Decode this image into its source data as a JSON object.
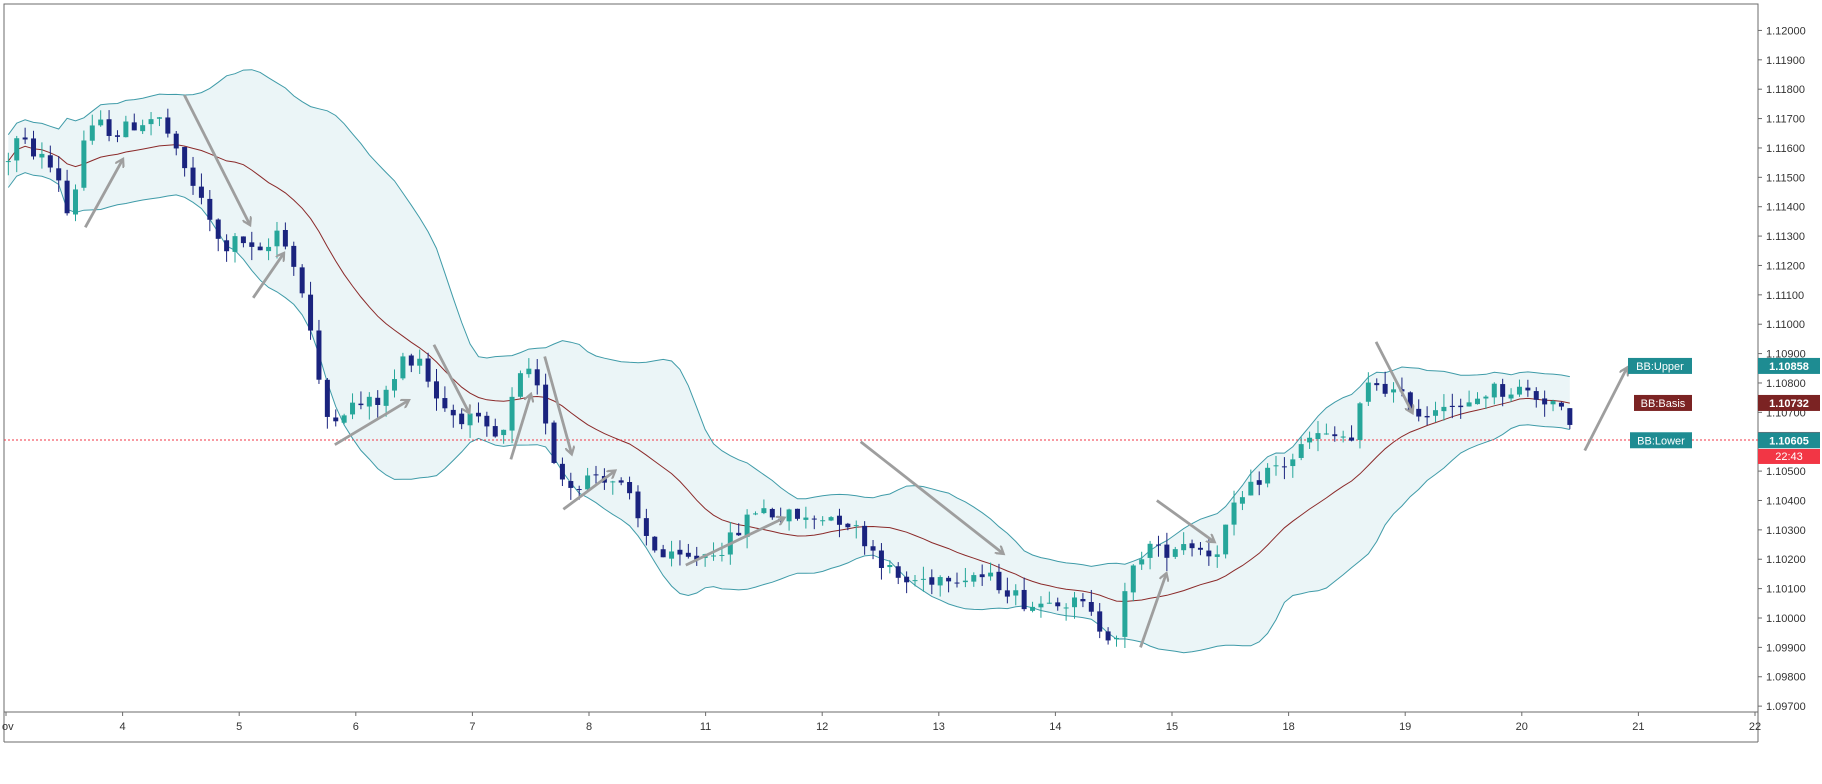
{
  "colors": {
    "up": "#26a69a",
    "down": "#1a237e",
    "band": "#3f9ba8",
    "band_fill": "#e3f1f3",
    "basis": "#8b2a2a",
    "current": "#f23645",
    "arrow": "#9e9e9e"
  },
  "chart_data": {
    "type": "candlestick",
    "title": "",
    "ylim": [
      1.0968,
      1.1209
    ],
    "y_ticks": [
      "1.12000",
      "1.11900",
      "1.11800",
      "1.11700",
      "1.11600",
      "1.11500",
      "1.11400",
      "1.11300",
      "1.11200",
      "1.11100",
      "1.11000",
      "1.10900",
      "1.10800",
      "1.10700",
      "1.10600",
      "1.10500",
      "1.10400",
      "1.10300",
      "1.10200",
      "1.10100",
      "1.10000",
      "1.09900",
      "1.09800",
      "1.09700"
    ],
    "x_ticks": [
      {
        "label": "ov",
        "x": 0
      },
      {
        "label": "4",
        "x": 1
      },
      {
        "label": "5",
        "x": 2
      },
      {
        "label": "6",
        "x": 3
      },
      {
        "label": "7",
        "x": 4
      },
      {
        "label": "8",
        "x": 5
      },
      {
        "label": "11",
        "x": 6
      },
      {
        "label": "12",
        "x": 7
      },
      {
        "label": "13",
        "x": 8
      },
      {
        "label": "14",
        "x": 9
      },
      {
        "label": "15",
        "x": 10
      },
      {
        "label": "18",
        "x": 11
      },
      {
        "label": "19",
        "x": 12
      },
      {
        "label": "20",
        "x": 13
      },
      {
        "label": "21",
        "x": 14
      },
      {
        "label": "22",
        "x": 15
      }
    ],
    "price_path": [
      [
        0.0,
        1.1155
      ],
      [
        0.1,
        1.1163
      ],
      [
        0.2,
        1.116
      ],
      [
        0.35,
        1.1155
      ],
      [
        0.45,
        1.115
      ],
      [
        0.55,
        1.1134
      ],
      [
        0.65,
        1.1162
      ],
      [
        0.8,
        1.1168
      ],
      [
        0.95,
        1.1165
      ],
      [
        1.1,
        1.1168
      ],
      [
        1.25,
        1.117
      ],
      [
        1.35,
        1.1169
      ],
      [
        1.45,
        1.1158
      ],
      [
        1.6,
        1.1148
      ],
      [
        1.75,
        1.1135
      ],
      [
        1.85,
        1.1125
      ],
      [
        1.95,
        1.1128
      ],
      [
        2.05,
        1.1128
      ],
      [
        2.15,
        1.1122
      ],
      [
        2.25,
        1.1126
      ],
      [
        2.35,
        1.1134
      ],
      [
        2.45,
        1.1122
      ],
      [
        2.55,
        1.111
      ],
      [
        2.65,
        1.109
      ],
      [
        2.72,
        1.1068
      ],
      [
        2.85,
        1.107
      ],
      [
        2.95,
        1.1072
      ],
      [
        3.1,
        1.1073
      ],
      [
        3.2,
        1.1074
      ],
      [
        3.3,
        1.1078
      ],
      [
        3.4,
        1.1088
      ],
      [
        3.55,
        1.1089
      ],
      [
        3.65,
        1.1078
      ],
      [
        3.8,
        1.107
      ],
      [
        3.95,
        1.1068
      ],
      [
        4.05,
        1.1066
      ],
      [
        4.15,
        1.1062
      ],
      [
        4.25,
        1.106
      ],
      [
        4.35,
        1.1075
      ],
      [
        4.45,
        1.1085
      ],
      [
        4.55,
        1.1078
      ],
      [
        4.65,
        1.1065
      ],
      [
        4.72,
        1.105
      ],
      [
        4.85,
        1.1045
      ],
      [
        4.95,
        1.1047
      ],
      [
        5.05,
        1.1049
      ],
      [
        5.15,
        1.1048
      ],
      [
        5.25,
        1.1046
      ],
      [
        5.35,
        1.104
      ],
      [
        5.45,
        1.103
      ],
      [
        5.55,
        1.1025
      ],
      [
        5.65,
        1.102
      ],
      [
        5.75,
        1.102
      ],
      [
        5.85,
        1.102
      ],
      [
        5.95,
        1.1021
      ],
      [
        6.05,
        1.1023
      ],
      [
        6.15,
        1.1024
      ],
      [
        6.25,
        1.1028
      ],
      [
        6.35,
        1.1033
      ],
      [
        6.45,
        1.1038
      ],
      [
        6.55,
        1.1036
      ],
      [
        6.65,
        1.1034
      ],
      [
        6.75,
        1.1035
      ],
      [
        6.85,
        1.1033
      ],
      [
        6.95,
        1.1034
      ],
      [
        7.05,
        1.1035
      ],
      [
        7.15,
        1.1034
      ],
      [
        7.25,
        1.1032
      ],
      [
        7.4,
        1.1025
      ],
      [
        7.5,
        1.102
      ],
      [
        7.6,
        1.1015
      ],
      [
        7.7,
        1.1012
      ],
      [
        7.8,
        1.1013
      ],
      [
        7.9,
        1.1013
      ],
      [
        8.0,
        1.1014
      ],
      [
        8.1,
        1.1015
      ],
      [
        8.2,
        1.1014
      ],
      [
        8.3,
        1.1015
      ],
      [
        8.45,
        1.1013
      ],
      [
        8.55,
        1.1011
      ],
      [
        8.65,
        1.1008
      ],
      [
        8.75,
        1.1005
      ],
      [
        8.85,
        1.1004
      ],
      [
        8.95,
        1.1008
      ],
      [
        9.05,
        1.1006
      ],
      [
        9.15,
        1.1005
      ],
      [
        9.25,
        1.1004
      ],
      [
        9.35,
        1.0998
      ],
      [
        9.45,
        1.0995
      ],
      [
        9.52,
        1.0994
      ],
      [
        9.6,
        1.1008
      ],
      [
        9.7,
        1.102
      ],
      [
        9.8,
        1.1025
      ],
      [
        9.9,
        1.1022
      ],
      [
        10.0,
        1.1024
      ],
      [
        10.1,
        1.1026
      ],
      [
        10.2,
        1.1025
      ],
      [
        10.3,
        1.1022
      ],
      [
        10.4,
        1.1024
      ],
      [
        10.5,
        1.1035
      ],
      [
        10.6,
        1.104
      ],
      [
        10.7,
        1.1045
      ],
      [
        10.8,
        1.105
      ],
      [
        10.95,
        1.1052
      ],
      [
        11.05,
        1.1055
      ],
      [
        11.15,
        1.106
      ],
      [
        11.25,
        1.1062
      ],
      [
        11.35,
        1.1061
      ],
      [
        11.45,
        1.1062
      ],
      [
        11.55,
        1.106
      ],
      [
        11.65,
        1.1078
      ],
      [
        11.75,
        1.108
      ],
      [
        11.85,
        1.1078
      ],
      [
        11.95,
        1.1075
      ],
      [
        12.05,
        1.1073
      ],
      [
        12.15,
        1.1068
      ],
      [
        12.25,
        1.1072
      ],
      [
        12.35,
        1.1075
      ],
      [
        12.45,
        1.107
      ],
      [
        12.55,
        1.1072
      ],
      [
        12.65,
        1.1076
      ],
      [
        12.75,
        1.1078
      ],
      [
        12.85,
        1.1077
      ],
      [
        12.95,
        1.1078
      ],
      [
        13.05,
        1.1077
      ],
      [
        13.15,
        1.1075
      ],
      [
        13.25,
        1.1074
      ],
      [
        13.32,
        1.1072
      ],
      [
        13.38,
        1.1065
      ],
      [
        13.45,
        1.1062
      ]
    ],
    "series": [
      {
        "name": "BB:Upper",
        "value": "1.10858"
      },
      {
        "name": "BB:Basis",
        "value": "1.10732"
      },
      {
        "name": "BB:Lower",
        "value": "1.10605"
      }
    ],
    "current_price": {
      "value": "1.10606",
      "countdown": "22:43"
    },
    "arrows": [
      [
        [
          0.68,
          1.1133
        ],
        [
          1.0,
          1.1156
        ]
      ],
      [
        [
          1.53,
          1.1178
        ],
        [
          2.09,
          1.1134
        ]
      ],
      [
        [
          2.12,
          1.1109
        ],
        [
          2.38,
          1.1124
        ]
      ],
      [
        [
          2.82,
          1.1059
        ],
        [
          3.45,
          1.1074
        ]
      ],
      [
        [
          3.67,
          1.1093
        ],
        [
          3.97,
          1.107
        ]
      ],
      [
        [
          4.33,
          1.1054
        ],
        [
          4.5,
          1.1076
        ]
      ],
      [
        [
          4.62,
          1.1089
        ],
        [
          4.85,
          1.1056
        ]
      ],
      [
        [
          4.78,
          1.1037
        ],
        [
          5.22,
          1.105
        ]
      ],
      [
        [
          5.83,
          1.1018
        ],
        [
          6.67,
          1.1034
        ]
      ],
      [
        [
          7.33,
          1.106
        ],
        [
          8.55,
          1.1022
        ]
      ],
      [
        [
          9.73,
          1.099
        ],
        [
          9.95,
          1.1015
        ]
      ],
      [
        [
          9.87,
          1.104
        ],
        [
          10.36,
          1.1026
        ]
      ],
      [
        [
          11.75,
          1.1094
        ],
        [
          12.06,
          1.107
        ]
      ],
      [
        [
          13.54,
          1.1057
        ],
        [
          13.9,
          1.1085
        ]
      ]
    ]
  }
}
